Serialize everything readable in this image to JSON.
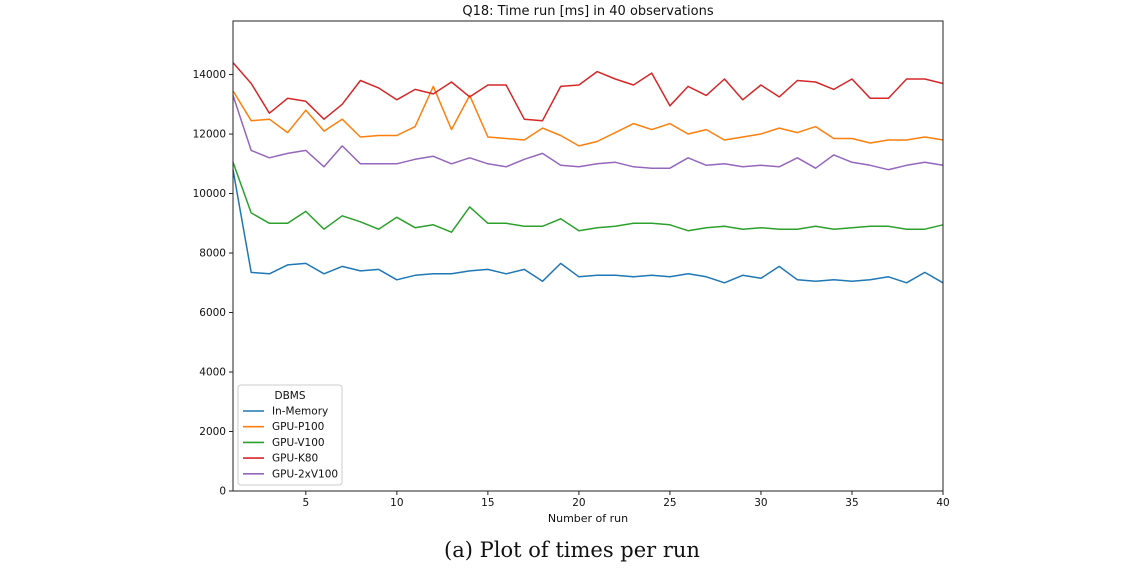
{
  "chart_data": {
    "type": "line",
    "title": "Q18: Time run [ms] in 40 observations",
    "xlabel": "Number of run",
    "ylabel": "",
    "xlim": [
      1,
      40
    ],
    "ylim": [
      0,
      15800
    ],
    "x_ticks": [
      5,
      10,
      15,
      20,
      25,
      30,
      35,
      40
    ],
    "y_ticks": [
      0,
      2000,
      4000,
      6000,
      8000,
      10000,
      12000,
      14000
    ],
    "legend": {
      "title": "DBMS",
      "placement": "lower-left"
    },
    "x": [
      1,
      2,
      3,
      4,
      5,
      6,
      7,
      8,
      9,
      10,
      11,
      12,
      13,
      14,
      15,
      16,
      17,
      18,
      19,
      20,
      21,
      22,
      23,
      24,
      25,
      26,
      27,
      28,
      29,
      30,
      31,
      32,
      33,
      34,
      35,
      36,
      37,
      38,
      39,
      40
    ],
    "series": [
      {
        "name": "In-Memory",
        "color": "#1f77b4",
        "values": [
          10800,
          7350,
          7300,
          7600,
          7650,
          7300,
          7550,
          7400,
          7450,
          7100,
          7250,
          7300,
          7300,
          7400,
          7450,
          7300,
          7450,
          7050,
          7650,
          7200,
          7250,
          7250,
          7200,
          7250,
          7200,
          7300,
          7200,
          7000,
          7250,
          7150,
          7550,
          7100,
          7050,
          7100,
          7050,
          7100,
          7200,
          7000,
          7350,
          7000
        ]
      },
      {
        "name": "GPU-P100",
        "color": "#ff7f0e",
        "values": [
          13450,
          12450,
          12500,
          12050,
          12800,
          12100,
          12500,
          11900,
          11950,
          11950,
          12250,
          13600,
          12150,
          13300,
          11900,
          11850,
          11800,
          12200,
          11950,
          11600,
          11750,
          12050,
          12350,
          12150,
          12350,
          12000,
          12150,
          11800,
          11900,
          12000,
          12200,
          12050,
          12250,
          11850,
          11850,
          11700,
          11800,
          11800,
          11900,
          11800
        ]
      },
      {
        "name": "GPU-V100",
        "color": "#2ca02c",
        "values": [
          11050,
          9350,
          9000,
          9000,
          9400,
          8800,
          9250,
          9050,
          8800,
          9200,
          8850,
          8950,
          8700,
          9550,
          9000,
          9000,
          8900,
          8900,
          9150,
          8750,
          8850,
          8900,
          9000,
          9000,
          8950,
          8750,
          8850,
          8900,
          8800,
          8850,
          8800,
          8800,
          8900,
          8800,
          8850,
          8900,
          8900,
          8800,
          8800,
          8950
        ]
      },
      {
        "name": "GPU-K80",
        "color": "#d62728",
        "values": [
          14400,
          13700,
          12700,
          13200,
          13100,
          12500,
          13000,
          13800,
          13550,
          13150,
          13500,
          13350,
          13750,
          13250,
          13650,
          13650,
          12500,
          12450,
          13600,
          13650,
          14100,
          13850,
          13650,
          14050,
          12950,
          13600,
          13300,
          13850,
          13150,
          13650,
          13250,
          13800,
          13750,
          13500,
          13850,
          13200,
          13200,
          13850,
          13850,
          13700
        ]
      },
      {
        "name": "GPU-2xV100",
        "color": "#9467bd",
        "values": [
          13300,
          11450,
          11200,
          11350,
          11450,
          10900,
          11600,
          11000,
          11000,
          11000,
          11150,
          11250,
          11000,
          11200,
          11000,
          10900,
          11150,
          11350,
          10950,
          10900,
          11000,
          11050,
          10900,
          10850,
          10850,
          11200,
          10950,
          11000,
          10900,
          10950,
          10900,
          11200,
          10850,
          11300,
          11050,
          10950,
          10800,
          10950,
          11050,
          10950
        ]
      }
    ]
  },
  "caption": "(a) Plot of times per run"
}
